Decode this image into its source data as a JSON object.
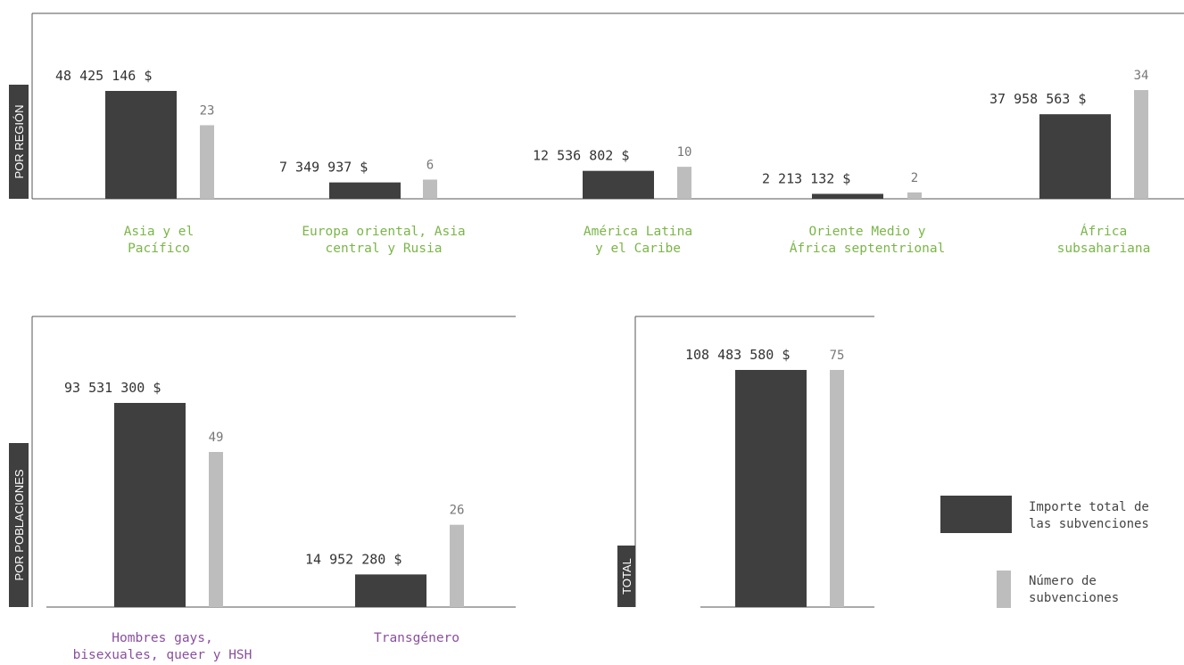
{
  "colors": {
    "amount": "#3f3f3f",
    "count": "#bdbdbd",
    "region_label": "#7ab648",
    "population_label": "#8a4f9e",
    "side_tab": "#3f3f3f",
    "frame": "#555555"
  },
  "legend": {
    "amount_line1": "Importe total de",
    "amount_line2": "las subvenciones",
    "count_line1": "Número de",
    "count_line2": "subvenciones"
  },
  "chart_data": [
    {
      "type": "bar",
      "panel_label": "POR REGIÓN",
      "categories": [
        [
          "Asia y el",
          "Pacífico"
        ],
        [
          "Europa oriental, Asia",
          "central y Rusia"
        ],
        [
          "América Latina",
          "y el Caribe"
        ],
        [
          "Oriente Medio y",
          "África septentrional"
        ],
        [
          "África",
          "subsahariana"
        ]
      ],
      "series": [
        {
          "name": "Importe total de las subvenciones",
          "values": [
            48425146,
            7349937,
            12536802,
            2213132,
            37958563
          ],
          "labels": [
            "48 425 146 $",
            "7 349 937 $",
            "12 536 802 $",
            "2 213 132 $",
            "37 958 563 $"
          ]
        },
        {
          "name": "Número de subvenciones",
          "values": [
            23,
            6,
            10,
            2,
            34
          ],
          "labels": [
            "23",
            "6",
            "10",
            "2",
            "34"
          ]
        }
      ]
    },
    {
      "type": "bar",
      "panel_label": "POR POBLACIONES",
      "categories": [
        [
          "Hombres gays,",
          "bisexuales, queer y HSH"
        ],
        [
          "Transgénero"
        ]
      ],
      "series": [
        {
          "name": "Importe total de las subvenciones",
          "values": [
            93531300,
            14952280
          ],
          "labels": [
            "93 531 300 $",
            "14 952 280 $"
          ]
        },
        {
          "name": "Número de subvenciones",
          "values": [
            49,
            26
          ],
          "labels": [
            "49",
            "26"
          ]
        }
      ]
    },
    {
      "type": "bar",
      "panel_label": "TOTAL",
      "categories": [
        []
      ],
      "series": [
        {
          "name": "Importe total de las subvenciones",
          "values": [
            108483580
          ],
          "labels": [
            "108 483 580 $"
          ]
        },
        {
          "name": "Número de subvenciones",
          "values": [
            75
          ],
          "labels": [
            "75"
          ]
        }
      ]
    }
  ]
}
